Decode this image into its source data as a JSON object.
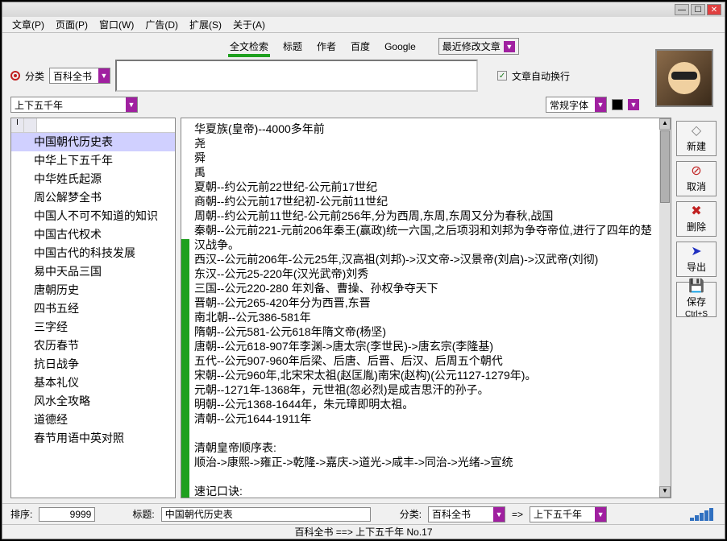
{
  "menus": [
    "文章(P)",
    "页面(P)",
    "窗口(W)",
    "广告(D)",
    "扩展(S)",
    "关于(A)"
  ],
  "tabs": [
    "全文检索",
    "标题",
    "作者",
    "百度",
    "Google"
  ],
  "recent_label": "最近修改文章",
  "category_label": "分类",
  "category_combo": "百科全书",
  "subcategory_combo": "上下五千年",
  "autowrap_label": "文章自动换行",
  "font_combo": "常规字体",
  "color_swatch": "#000000",
  "sidebar_items": [
    "中国朝代历史表",
    "中华上下五千年",
    "中华姓氏起源",
    "周公解梦全书",
    "中国人不可不知道的知识",
    "中国古代权术",
    "中国古代的科技发展",
    "易中天品三国",
    "唐朝历史",
    "四书五经",
    "三字经",
    "农历春节",
    "抗日战争",
    "基本礼仪",
    "风水全攻略",
    "道德经",
    "春节用语中英对照"
  ],
  "content_text": "华夏族(皇帝)--4000多年前\n尧\n舜\n禹\n夏朝--约公元前22世纪-公元前17世纪\n商朝--约公元前17世纪初-公元前11世纪\n周朝--约公元前11世纪-公元前256年,分为西周,东周,东周又分为春秋,战国\n秦朝--公元前221-元前206年秦王(赢政)统一六国,之后项羽和刘邦为争夺帝位,进行了四年的楚汉战争。\n西汉--公元前206年-公元25年,汉高祖(刘邦)->汉文帝->汉景帝(刘启)->汉武帝(刘彻)\n东汉--公元25-220年(汉光武帝)刘秀\n三国--公元220-280 年刘备、曹操、孙权争夺天下\n晋朝--公元265-420年分为西晋,东晋\n南北朝--公元386-581年\n隋朝--公元581-公元618年隋文帝(杨坚)\n唐朝--公元618-907年李渊->唐太宗(李世民)->唐玄宗(李隆基)\n五代--公元907-960年后梁、后唐、后晋、后汉、后周五个朝代\n宋朝--公元960年,北宋宋太祖(赵匡胤)南宋(赵构)(公元1127-1279年)。\n元朝--1271年-1368年，元世祖(忽必烈)是成吉思汗的孙子。\n明朝--公元1368-1644年，朱元璋即明太祖。\n清朝--公元1644-1911年\n\n清朝皇帝顺序表:\n顺治->康熙->雍正->乾隆->嘉庆->道光->咸丰->同治->光绪->宣统\n\n速记口诀:\n夏商和西周，东周分两段，\n春秋和战国，一统秦两汉，",
  "sort_label": "排序:",
  "sort_value": "9999",
  "title_label": "标题:",
  "title_value": "中国朝代历史表",
  "cat2_label": "分类:",
  "cat2_value": "百科全书",
  "arrow": "=>",
  "cat3_value": "上下五千年",
  "footer_text": "百科全书 ==> 上下五千年     No.17",
  "rb": [
    {
      "icon": "◇",
      "label": "新建",
      "color": "#808080"
    },
    {
      "icon": "⊘",
      "label": "取消",
      "color": "#c02020"
    },
    {
      "icon": "✖",
      "label": "删除",
      "color": "#c02020"
    },
    {
      "icon": "➤",
      "label": "导出",
      "color": "#2030c0"
    },
    {
      "icon": "💾",
      "label": "保存",
      "sub": "Ctrl+S",
      "color": "#000"
    }
  ]
}
